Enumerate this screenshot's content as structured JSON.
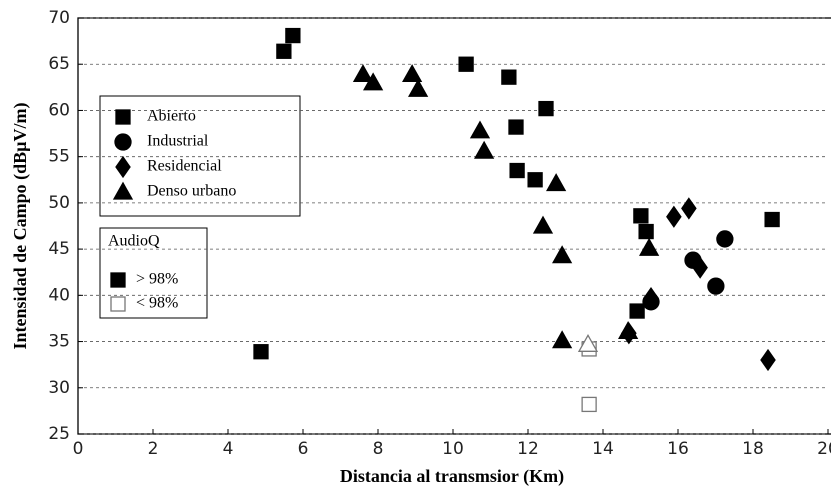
{
  "chart_data": {
    "type": "scatter",
    "x_label": "Distancia al transmsior (Km)",
    "y_label": "Intensidad de Campo (dBµV/m)",
    "xlim": [
      0,
      20
    ],
    "xticks": [
      0,
      2,
      4,
      6,
      8,
      10,
      12,
      14,
      16,
      18,
      20
    ],
    "ylim": [
      25,
      70
    ],
    "yticks": [
      25,
      30,
      35,
      40,
      45,
      50,
      55,
      60,
      65,
      70
    ],
    "grid": true,
    "color": "#000000",
    "series": [
      {
        "name": "Abierto",
        "marker": "square",
        "x": [
          5.49,
          5.73,
          10.35,
          11.49,
          12.48,
          11.68,
          11.71,
          12.19,
          15.01,
          15.15,
          18.51,
          14.91,
          4.88,
          13.63,
          13.63
        ],
        "y": [
          66.4,
          68.1,
          65.0,
          63.6,
          60.2,
          58.2,
          53.5,
          52.5,
          48.6,
          46.9,
          48.2,
          38.3,
          33.9,
          28.2,
          34.2
        ],
        "quality": [
          0,
          0,
          0,
          0,
          0,
          0,
          0,
          0,
          0,
          0,
          0,
          0,
          0,
          1,
          1
        ]
      },
      {
        "name": "Industrial",
        "marker": "circle",
        "x": [
          17.25,
          16.4,
          17.01,
          15.28
        ],
        "y": [
          46.1,
          43.8,
          41.0,
          39.3
        ],
        "quality": [
          0,
          0,
          0,
          0
        ]
      },
      {
        "name": "Residencial",
        "marker": "diamond",
        "x": [
          15.89,
          16.29,
          16.59,
          15.28,
          14.69,
          18.4
        ],
        "y": [
          48.5,
          49.4,
          43.0,
          39.7,
          35.9,
          33.0
        ],
        "quality": [
          0,
          0,
          0,
          0,
          0,
          0
        ]
      },
      {
        "name": "Denso urbano",
        "marker": "triangle",
        "x": [
          7.6,
          7.87,
          8.91,
          9.07,
          10.72,
          10.83,
          12.75,
          12.4,
          12.91,
          12.91,
          14.67,
          15.23,
          13.6
        ],
        "y": [
          63.9,
          63.0,
          63.9,
          62.3,
          57.8,
          55.6,
          52.1,
          47.5,
          44.3,
          35.1,
          36.1,
          45.1,
          34.7
        ],
        "quality": [
          0,
          0,
          0,
          0,
          0,
          0,
          0,
          0,
          0,
          0,
          0,
          0,
          1
        ]
      }
    ],
    "quality_legend": {
      "title": "AudioQ",
      "items": [
        {
          "label": "> 98%",
          "filled": true
        },
        {
          "label": "< 98%",
          "filled": false
        }
      ]
    }
  }
}
